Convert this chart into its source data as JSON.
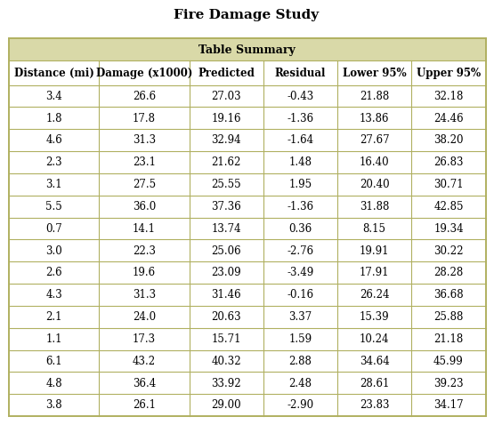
{
  "title": "Fire Damage Study",
  "table_summary_label": "Table Summary",
  "col_headers": [
    "Distance (mi)",
    "Damage (x1000)",
    "Predicted",
    "Residual",
    "Lower 95%",
    "Upper 95%"
  ],
  "rows": [
    [
      "3.4",
      "26.6",
      "27.03",
      "-0.43",
      "21.88",
      "32.18"
    ],
    [
      "1.8",
      "17.8",
      "19.16",
      "-1.36",
      "13.86",
      "24.46"
    ],
    [
      "4.6",
      "31.3",
      "32.94",
      "-1.64",
      "27.67",
      "38.20"
    ],
    [
      "2.3",
      "23.1",
      "21.62",
      "1.48",
      "16.40",
      "26.83"
    ],
    [
      "3.1",
      "27.5",
      "25.55",
      "1.95",
      "20.40",
      "30.71"
    ],
    [
      "5.5",
      "36.0",
      "37.36",
      "-1.36",
      "31.88",
      "42.85"
    ],
    [
      "0.7",
      "14.1",
      "13.74",
      "0.36",
      "8.15",
      "19.34"
    ],
    [
      "3.0",
      "22.3",
      "25.06",
      "-2.76",
      "19.91",
      "30.22"
    ],
    [
      "2.6",
      "19.6",
      "23.09",
      "-3.49",
      "17.91",
      "28.28"
    ],
    [
      "4.3",
      "31.3",
      "31.46",
      "-0.16",
      "26.24",
      "36.68"
    ],
    [
      "2.1",
      "24.0",
      "20.63",
      "3.37",
      "15.39",
      "25.88"
    ],
    [
      "1.1",
      "17.3",
      "15.71",
      "1.59",
      "10.24",
      "21.18"
    ],
    [
      "6.1",
      "43.2",
      "40.32",
      "2.88",
      "34.64",
      "45.99"
    ],
    [
      "4.8",
      "36.4",
      "33.92",
      "2.48",
      "28.61",
      "39.23"
    ],
    [
      "3.8",
      "26.1",
      "29.00",
      "-2.90",
      "23.83",
      "34.17"
    ]
  ],
  "header_bg": "#d9d9a8",
  "summary_bg": "#d9d9a8",
  "outer_border_color": "#b0b060",
  "cell_border_color": "#b0b060",
  "title_fontsize": 11,
  "header_fontsize": 8.5,
  "cell_fontsize": 8.5,
  "bg_color": "#ffffff",
  "figure_bg": "#ffffff",
  "col_widths_rel": [
    1.18,
    1.18,
    0.97,
    0.97,
    0.97,
    0.97
  ]
}
